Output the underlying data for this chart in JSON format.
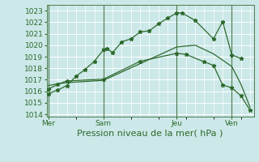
{
  "bg_color": "#cce8e8",
  "grid_color": "#ffffff",
  "line_color_main": "#2d6a2d",
  "line_color_vert": "#4a7a4a",
  "xlabel": "Pression niveau de la mer( hPa )",
  "xlabel_fontsize": 8,
  "tick_fontsize": 6.5,
  "ylim": [
    1013.8,
    1023.5
  ],
  "yticks": [
    1014,
    1015,
    1016,
    1017,
    1018,
    1019,
    1020,
    1021,
    1022,
    1023
  ],
  "xtick_labels": [
    "Mer",
    "Sam",
    "Jeu",
    "Ven"
  ],
  "xtick_positions": [
    0,
    3,
    7,
    10
  ],
  "vline_positions": [
    0,
    3,
    7,
    10
  ],
  "series1_x": [
    0,
    0.5,
    1,
    1.5,
    2,
    2.5,
    3,
    3.2,
    3.5,
    4,
    4.5,
    5,
    5.5,
    6,
    6.5,
    7,
    7.3,
    8,
    9,
    9.5,
    10,
    10.5
  ],
  "series1_y": [
    1015.8,
    1016.1,
    1016.5,
    1017.3,
    1017.9,
    1018.6,
    1019.6,
    1019.7,
    1019.35,
    1020.3,
    1020.55,
    1021.15,
    1021.25,
    1021.85,
    1022.35,
    1022.8,
    1022.78,
    1022.15,
    1020.55,
    1022.05,
    1019.15,
    1018.85
  ],
  "series2_x": [
    0,
    0.5,
    1,
    3,
    5,
    7,
    7.5,
    8.5,
    9,
    9.5,
    10,
    10.5,
    11
  ],
  "series2_y": [
    1016.2,
    1016.6,
    1016.9,
    1017.05,
    1018.6,
    1019.3,
    1019.2,
    1018.55,
    1018.25,
    1016.55,
    1016.3,
    1015.6,
    1014.35
  ],
  "series3_x": [
    0,
    0.5,
    1,
    3,
    7,
    8,
    9,
    10,
    10.5,
    11
  ],
  "series3_y": [
    1016.5,
    1016.65,
    1016.75,
    1016.95,
    1019.85,
    1020.0,
    1019.25,
    1018.15,
    1016.6,
    1014.6
  ],
  "xlim": [
    -0.1,
    11.2
  ]
}
